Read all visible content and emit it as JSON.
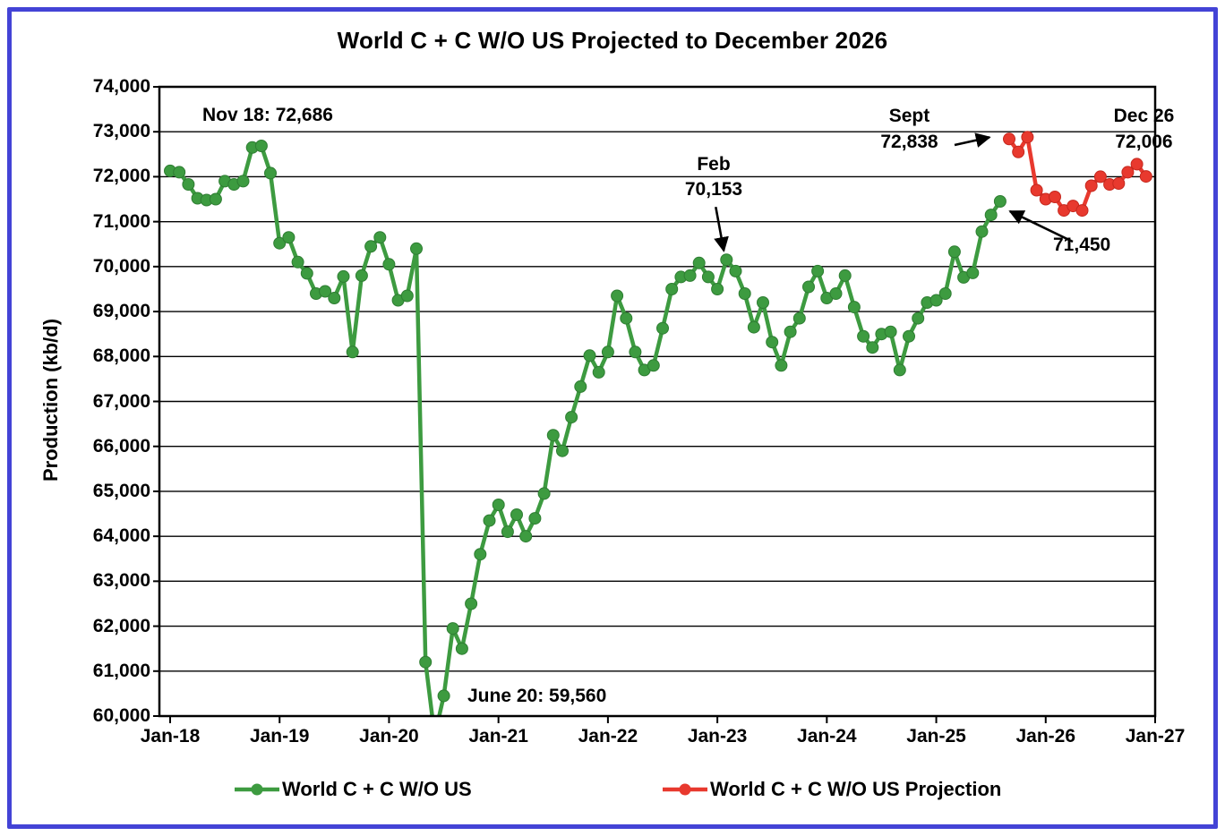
{
  "title": "World C + C W/O US Projected to December 2026",
  "chart_data": {
    "type": "line",
    "title": "World C + C W/O US Projected to December 2026",
    "xlabel": "",
    "ylabel": "Production (kb/d)",
    "ylim": [
      60000,
      74000
    ],
    "y_tick_step": 1000,
    "y_tick_labels": [
      "60,000",
      "61,000",
      "62,000",
      "63,000",
      "64,000",
      "65,000",
      "66,000",
      "67,000",
      "68,000",
      "69,000",
      "70,000",
      "71,000",
      "72,000",
      "73,000",
      "74,000"
    ],
    "x_tick_labels": [
      "Jan-18",
      "Jan-19",
      "Jan-20",
      "Jan-21",
      "Jan-22",
      "Jan-23",
      "Jan-24",
      "Jan-25",
      "Jan-26",
      "Jan-27"
    ],
    "x_range_months": 108,
    "grid": "horizontal-black",
    "legend_position": "bottom",
    "series": [
      {
        "name": "World C + C W/O US",
        "color": "#3d9b40",
        "marker_edge": "#2e7d32",
        "frequency": "monthly",
        "start_month": "Jan-2018",
        "start_index": 0,
        "values": [
          72130,
          72100,
          71830,
          71520,
          71480,
          71500,
          71900,
          71830,
          71900,
          72650,
          72686,
          72080,
          70520,
          70650,
          70100,
          69850,
          69400,
          69450,
          69300,
          69780,
          68100,
          69800,
          70450,
          70650,
          70050,
          69250,
          69350,
          70400,
          61200,
          59560,
          60450,
          61950,
          61500,
          62500,
          63600,
          64350,
          64700,
          64100,
          64480,
          64000,
          64400,
          64950,
          66250,
          65900,
          66650,
          67330,
          68020,
          67650,
          68100,
          69350,
          68850,
          68100,
          67700,
          67800,
          68630,
          69500,
          69770,
          69800,
          70080,
          69770,
          69500,
          70153,
          69900,
          69400,
          68650,
          69200,
          68320,
          67800,
          68550,
          68850,
          69550,
          69900,
          69300,
          69400,
          69800,
          69100,
          68450,
          68200,
          68500,
          68550,
          67700,
          68450,
          68850,
          69200,
          69250,
          69400,
          70330,
          69760,
          69860,
          70780,
          71150,
          71450
        ]
      },
      {
        "name": "World C + C W/O US Projection",
        "color": "#e8392e",
        "marker_edge": "#c5281e",
        "frequency": "monthly",
        "start_month": "Sep-2025",
        "start_index": 92,
        "values": [
          72838,
          72550,
          72880,
          71700,
          71500,
          71550,
          71250,
          71350,
          71250,
          71800,
          72000,
          71830,
          71850,
          72100,
          72280,
          72006
        ]
      }
    ],
    "annotations": [
      {
        "id": "nov18",
        "text": "Nov 18: 72,686"
      },
      {
        "id": "feb",
        "lines": [
          "Feb",
          "70,153"
        ],
        "anchor": {
          "series": 0,
          "month": "Feb-2023",
          "value": 70153
        },
        "arrow": true
      },
      {
        "id": "sept",
        "lines": [
          "Sept",
          "72,838"
        ],
        "anchor": {
          "series": 1,
          "month": "Sep-2025",
          "value": 72838
        },
        "arrow": true
      },
      {
        "id": "dec26",
        "lines": [
          "Dec 26",
          "72,006"
        ],
        "anchor": {
          "series": 1,
          "month": "Dec-2026",
          "value": 72006
        }
      },
      {
        "id": "last-actual",
        "text": "71,450",
        "anchor": {
          "series": 0,
          "month": "Aug-2025",
          "value": 71450
        },
        "arrow": true
      },
      {
        "id": "june20",
        "text": "June 20: 59,560",
        "anchor": {
          "series": 0,
          "month": "Jun-2020",
          "value": 59560
        }
      }
    ],
    "legend": [
      {
        "label": "World C + C W/O US",
        "color": "#3d9b40"
      },
      {
        "label": "World C + C W/O US Projection",
        "color": "#e8392e"
      }
    ]
  },
  "frame": {
    "border_color": "#4343d6"
  }
}
